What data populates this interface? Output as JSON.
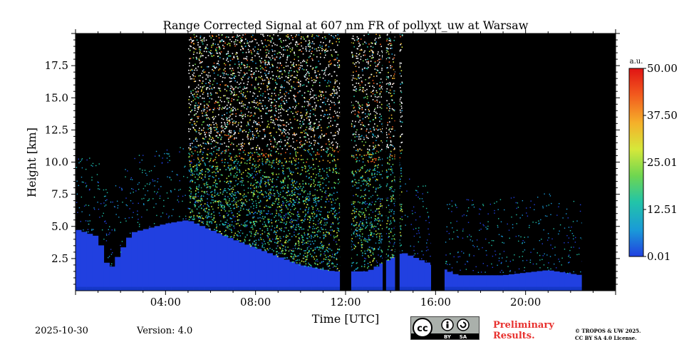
{
  "chart_data": {
    "type": "heatmap",
    "title": "Range Corrected Signal at 607 nm FR of pollyxt_uw at Warsaw",
    "xlabel": "Time [UTC]",
    "ylabel": "Height [km]",
    "xlim": [
      0,
      24
    ],
    "ylim": [
      0,
      20
    ],
    "x_ticks": [
      {
        "value": 4,
        "label": "04:00"
      },
      {
        "value": 8,
        "label": "08:00"
      },
      {
        "value": 12,
        "label": "12:00"
      },
      {
        "value": 16,
        "label": "16:00"
      },
      {
        "value": 20,
        "label": "20:00"
      }
    ],
    "y_ticks": [
      {
        "value": 2.5,
        "label": "2.5"
      },
      {
        "value": 5.0,
        "label": "5.0"
      },
      {
        "value": 7.5,
        "label": "7.5"
      },
      {
        "value": 10.0,
        "label": "10.0"
      },
      {
        "value": 12.5,
        "label": "12.5"
      },
      {
        "value": 15.0,
        "label": "15.0"
      },
      {
        "value": 17.5,
        "label": "17.5"
      }
    ],
    "colorbar": {
      "unit": "a.u.",
      "range": [
        0.01,
        50.0
      ],
      "ticks": [
        {
          "value": 0.01,
          "label": "0.01"
        },
        {
          "value": 12.51,
          "label": "12.51"
        },
        {
          "value": 25.01,
          "label": "25.01"
        },
        {
          "value": 37.5,
          "label": "37.50"
        },
        {
          "value": 50.0,
          "label": "50.00"
        }
      ],
      "colormap": [
        "#2140e0",
        "#1a9ad8",
        "#22c4a8",
        "#6fd650",
        "#d6e83a",
        "#f5b02a",
        "#f25a1e",
        "#e01414"
      ]
    },
    "background_color": "#000000",
    "no_data_gaps_utc": [
      [
        11.75,
        12.25
      ],
      [
        13.65,
        13.8
      ],
      [
        14.2,
        14.4
      ],
      [
        15.8,
        16.4
      ],
      [
        22.5,
        24.0
      ]
    ],
    "boundary_layer_km": [
      {
        "t": 0.0,
        "h": 4.8
      },
      {
        "t": 1.0,
        "h": 4.2
      },
      {
        "t": 1.5,
        "h": 1.5
      },
      {
        "t": 2.5,
        "h": 4.5
      },
      {
        "t": 4.0,
        "h": 5.2
      },
      {
        "t": 5.0,
        "h": 5.5
      },
      {
        "t": 7.0,
        "h": 4.0
      },
      {
        "t": 10.0,
        "h": 2.0
      },
      {
        "t": 11.5,
        "h": 1.5
      },
      {
        "t": 13.0,
        "h": 1.5
      },
      {
        "t": 14.5,
        "h": 3.0
      },
      {
        "t": 17.0,
        "h": 1.2
      },
      {
        "t": 19.0,
        "h": 1.2
      },
      {
        "t": 21.0,
        "h": 1.6
      },
      {
        "t": 22.5,
        "h": 1.2
      }
    ],
    "high_signal_period_utc": [
      5.0,
      14.5
    ]
  },
  "footer": {
    "date": "2025-10-30",
    "version": "Version: 4.0",
    "preliminary": [
      "Preliminary",
      "Results."
    ],
    "copyright": [
      "© TROPOS & UW 2025.",
      "CC BY SA 4.0 License."
    ],
    "license_badge": {
      "by": "BY",
      "sa": "SA"
    }
  },
  "colors": {
    "accent": "#e8322f"
  }
}
